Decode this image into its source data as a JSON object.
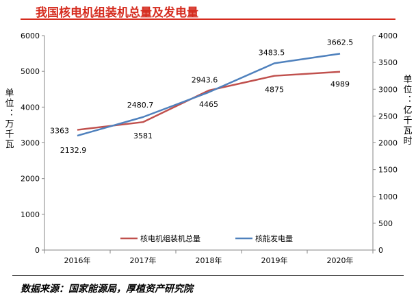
{
  "title": "我国核电机组装机总量及发电量",
  "source": "数据来源：国家能源局，厚植资产研究院",
  "colors": {
    "capacity": "#c0504d",
    "generation": "#4f81bd",
    "title": "#d52b1e"
  },
  "chart_data": {
    "type": "line",
    "categories": [
      "2016年",
      "2017年",
      "2018年",
      "2019年",
      "2020年"
    ],
    "series": [
      {
        "name": "核电机组装机总量",
        "axis": "left",
        "values": [
          3363,
          3581,
          4465,
          4875,
          4989
        ],
        "labels": [
          "3363",
          "3581",
          "4465",
          "4875",
          "4989"
        ]
      },
      {
        "name": "核能发电量",
        "axis": "right",
        "values": [
          2132.9,
          2480.7,
          2943.6,
          3483.5,
          3662.5
        ],
        "labels": [
          "2132.9",
          "2480.7",
          "2943.6",
          "3483.5",
          "3662.5"
        ]
      }
    ],
    "ylabel_left": "单位：万千瓦",
    "ylabel_right": "单位：亿千瓦时",
    "ylim_left": [
      0,
      6000
    ],
    "ylim_right": [
      0,
      4000
    ],
    "yticks_left": [
      "0",
      "1000",
      "2000",
      "3000",
      "4000",
      "5000",
      "6000"
    ],
    "yticks_right": [
      "0",
      "500",
      "1000",
      "1500",
      "2000",
      "2500",
      "3000",
      "3500",
      "4000"
    ],
    "legend": "bottom-center",
    "grid": false
  }
}
